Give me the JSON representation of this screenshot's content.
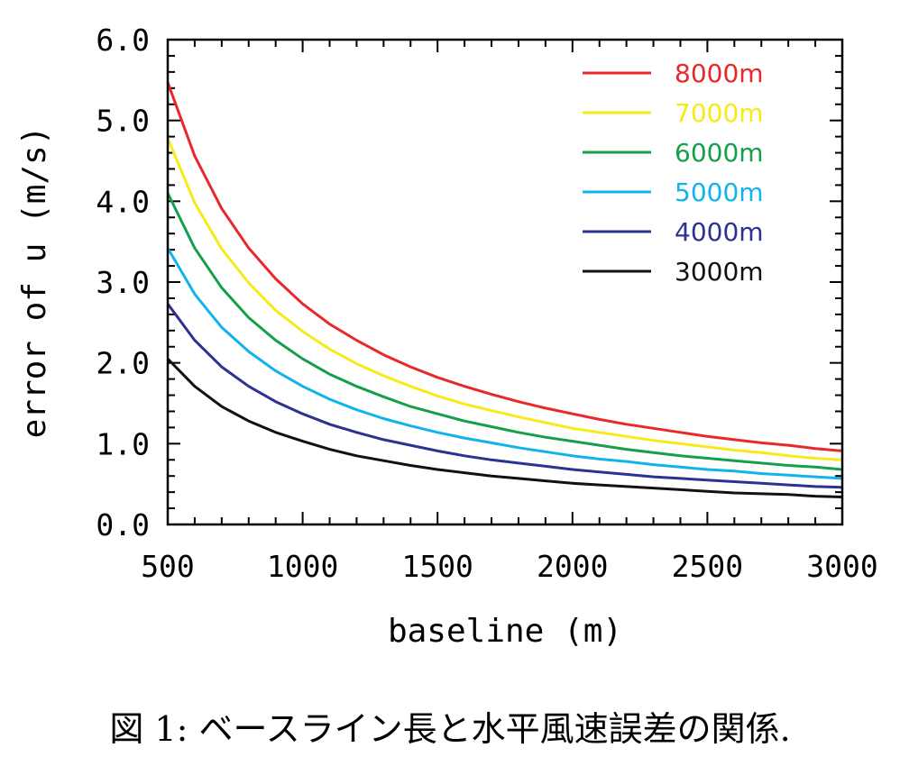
{
  "caption": "図 1: ベースライン長と水平風速誤差の関係.",
  "chart_data": {
    "type": "line",
    "xlabel": "baseline (m)",
    "ylabel": "error of u (m/s)",
    "xlim": [
      500,
      3000
    ],
    "ylim": [
      0.0,
      6.0
    ],
    "x_ticks": [
      500,
      1000,
      1500,
      2000,
      2500,
      3000
    ],
    "x_tick_labels": [
      "500",
      "1000",
      "1500",
      "2000",
      "2500",
      "3000"
    ],
    "y_ticks": [
      0,
      1,
      2,
      3,
      4,
      5,
      6
    ],
    "y_tick_labels": [
      "0.0",
      "1.0",
      "2.0",
      "3.0",
      "4.0",
      "5.0",
      "6.0"
    ],
    "x_minor_step": 100,
    "y_minor_step": 0.2,
    "grid": false,
    "legend_position": "top-right",
    "x": [
      500,
      600,
      700,
      800,
      900,
      1000,
      1100,
      1200,
      1300,
      1400,
      1500,
      1600,
      1700,
      1800,
      1900,
      2000,
      2100,
      2200,
      2300,
      2400,
      2500,
      2600,
      2700,
      2800,
      2900,
      3000
    ],
    "series": [
      {
        "name": "8000m",
        "color": "#e8282a",
        "values": [
          5.47,
          4.56,
          3.91,
          3.42,
          3.04,
          2.73,
          2.48,
          2.28,
          2.1,
          1.95,
          1.82,
          1.71,
          1.61,
          1.52,
          1.44,
          1.37,
          1.3,
          1.24,
          1.19,
          1.14,
          1.09,
          1.05,
          1.01,
          0.98,
          0.94,
          0.91
        ]
      },
      {
        "name": "7000m",
        "color": "#f7ea1b",
        "values": [
          4.78,
          3.98,
          3.41,
          2.99,
          2.65,
          2.39,
          2.17,
          1.99,
          1.84,
          1.71,
          1.59,
          1.49,
          1.41,
          1.33,
          1.26,
          1.19,
          1.14,
          1.09,
          1.04,
          1.0,
          0.96,
          0.92,
          0.89,
          0.85,
          0.82,
          0.8
        ]
      },
      {
        "name": "6000m",
        "color": "#14a04a",
        "values": [
          4.1,
          3.42,
          2.93,
          2.56,
          2.28,
          2.05,
          1.86,
          1.71,
          1.58,
          1.46,
          1.37,
          1.28,
          1.21,
          1.14,
          1.08,
          1.03,
          0.98,
          0.93,
          0.89,
          0.85,
          0.82,
          0.79,
          0.76,
          0.73,
          0.71,
          0.68
        ]
      },
      {
        "name": "5000m",
        "color": "#11b4ea",
        "values": [
          3.42,
          2.85,
          2.44,
          2.14,
          1.9,
          1.71,
          1.55,
          1.42,
          1.31,
          1.22,
          1.14,
          1.07,
          1.01,
          0.95,
          0.9,
          0.85,
          0.81,
          0.78,
          0.74,
          0.71,
          0.68,
          0.66,
          0.63,
          0.61,
          0.59,
          0.57
        ]
      },
      {
        "name": "4000m",
        "color": "#2d3191",
        "values": [
          2.73,
          2.28,
          1.95,
          1.71,
          1.52,
          1.37,
          1.24,
          1.14,
          1.05,
          0.98,
          0.91,
          0.85,
          0.8,
          0.76,
          0.72,
          0.68,
          0.65,
          0.62,
          0.59,
          0.57,
          0.55,
          0.53,
          0.51,
          0.49,
          0.47,
          0.46
        ]
      },
      {
        "name": "3000m",
        "color": "#111111",
        "values": [
          2.05,
          1.71,
          1.46,
          1.28,
          1.14,
          1.03,
          0.93,
          0.85,
          0.79,
          0.73,
          0.68,
          0.64,
          0.6,
          0.57,
          0.54,
          0.51,
          0.49,
          0.47,
          0.45,
          0.43,
          0.41,
          0.39,
          0.38,
          0.37,
          0.35,
          0.34
        ]
      }
    ]
  }
}
